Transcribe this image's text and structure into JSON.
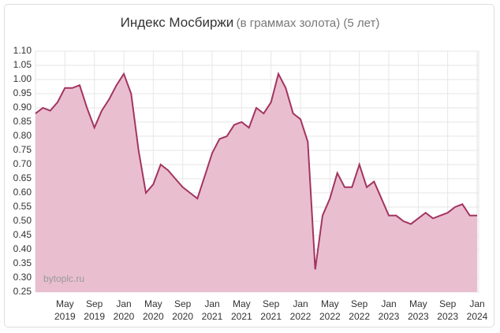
{
  "chart_data": {
    "type": "area",
    "title": "Индекс Мосбиржи",
    "subtitle": "(в граммах золота) (5 лет)",
    "annotation": "bytoplc.ru",
    "color": "#a33460",
    "fill": "#e9bfcf",
    "grid": true,
    "x": [
      "2019-01",
      "2019-02",
      "2019-03",
      "2019-04",
      "2019-05",
      "2019-06",
      "2019-07",
      "2019-08",
      "2019-09",
      "2019-10",
      "2019-11",
      "2019-12",
      "2020-01",
      "2020-02",
      "2020-03",
      "2020-04",
      "2020-05",
      "2020-06",
      "2020-07",
      "2020-08",
      "2020-09",
      "2020-10",
      "2020-11",
      "2020-12",
      "2021-01",
      "2021-02",
      "2021-03",
      "2021-04",
      "2021-05",
      "2021-06",
      "2021-07",
      "2021-08",
      "2021-09",
      "2021-10",
      "2021-11",
      "2021-12",
      "2022-01",
      "2022-02",
      "2022-03",
      "2022-04",
      "2022-05",
      "2022-06",
      "2022-07",
      "2022-08",
      "2022-09",
      "2022-10",
      "2022-11",
      "2022-12",
      "2023-01",
      "2023-02",
      "2023-03",
      "2023-04",
      "2023-05",
      "2023-06",
      "2023-07",
      "2023-08",
      "2023-09",
      "2023-10",
      "2023-11",
      "2023-12",
      "2024-01"
    ],
    "values": [
      0.88,
      0.9,
      0.89,
      0.92,
      0.97,
      0.97,
      0.98,
      0.9,
      0.83,
      0.89,
      0.93,
      0.98,
      1.02,
      0.95,
      0.75,
      0.6,
      0.63,
      0.7,
      0.68,
      0.65,
      0.62,
      0.6,
      0.58,
      0.66,
      0.74,
      0.79,
      0.8,
      0.84,
      0.85,
      0.83,
      0.9,
      0.88,
      0.92,
      1.02,
      0.97,
      0.88,
      0.86,
      0.78,
      0.33,
      0.52,
      0.58,
      0.67,
      0.62,
      0.62,
      0.7,
      0.62,
      0.64,
      0.58,
      0.52,
      0.52,
      0.5,
      0.49,
      0.51,
      0.53,
      0.51,
      0.52,
      0.53,
      0.55,
      0.56,
      0.52,
      0.52
    ],
    "xlim": [
      "2019-01",
      "2024-01"
    ],
    "xticks": [
      {
        "value": "2019-05",
        "label": "May 2019"
      },
      {
        "value": "2019-09",
        "label": "Sep 2019"
      },
      {
        "value": "2020-01",
        "label": "Jan 2020"
      },
      {
        "value": "2020-05",
        "label": "May 2020"
      },
      {
        "value": "2020-09",
        "label": "Sep 2020"
      },
      {
        "value": "2021-01",
        "label": "Jan 2021"
      },
      {
        "value": "2021-05",
        "label": "May 2021"
      },
      {
        "value": "2021-09",
        "label": "Sep 2021"
      },
      {
        "value": "2022-01",
        "label": "Jan 2022"
      },
      {
        "value": "2022-05",
        "label": "May 2022"
      },
      {
        "value": "2022-09",
        "label": "Sep 2022"
      },
      {
        "value": "2023-01",
        "label": "Jan 2023"
      },
      {
        "value": "2023-05",
        "label": "May 2023"
      },
      {
        "value": "2023-09",
        "label": "Sep 2023"
      },
      {
        "value": "2024-01",
        "label": "Jan 2024"
      }
    ],
    "ylim": [
      0.25,
      1.1
    ],
    "yticks": [
      {
        "value": 1.1,
        "label": "1.10"
      },
      1.05,
      {
        "value": 1.0,
        "label": "1.00"
      },
      0.95,
      {
        "value": 0.9,
        "label": "0.90"
      },
      0.85,
      {
        "value": 0.8,
        "label": "0.80"
      },
      0.75,
      {
        "value": 0.7,
        "label": "0.70"
      },
      0.65,
      {
        "value": 0.6,
        "label": "0.60"
      },
      0.55,
      {
        "value": 0.5,
        "label": "0.50"
      },
      0.45,
      {
        "value": 0.4,
        "label": "0.40"
      },
      0.35,
      {
        "value": 0.3,
        "label": "0.30"
      },
      0.25
    ]
  }
}
